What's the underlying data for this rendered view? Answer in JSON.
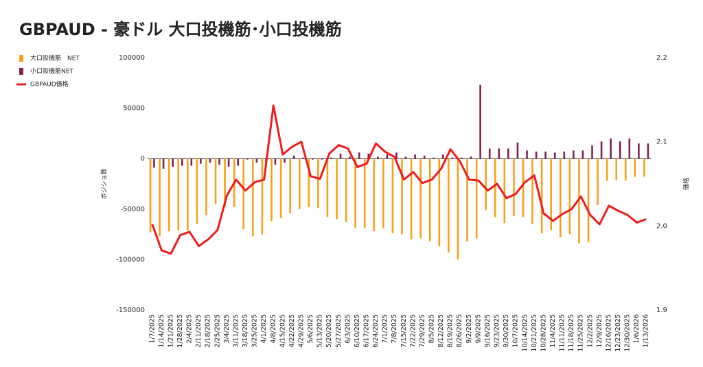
{
  "chart_data": {
    "type": "bar",
    "title": "GBPAUD - 豪ドル 大口投機筋･小口投機筋",
    "y_label": "ボジショ数",
    "y2_label": "価格",
    "categories": [
      "1/7/2025",
      "1/14/2025",
      "1/21/2025",
      "1/28/2025",
      "2/4/2025",
      "2/11/2025",
      "2/18/2025",
      "2/25/2025",
      "3/4/2025",
      "3/11/2025",
      "3/18/2025",
      "3/25/2025",
      "4/1/2025",
      "4/8/2025",
      "4/15/2025",
      "4/22/2025",
      "4/29/2025",
      "5/6/2025",
      "5/13/2025",
      "5/20/2025",
      "5/27/2025",
      "6/3/2025",
      "6/10/2025",
      "6/17/2025",
      "6/24/2025",
      "7/1/2025",
      "7/8/2025",
      "7/15/2025",
      "7/22/2025",
      "7/29/2025",
      "8/5/2025",
      "8/12/2025",
      "8/19/2025",
      "8/26/2025",
      "9/2/2025",
      "9/9/2025",
      "9/16/2025",
      "9/23/2025",
      "9/30/2025",
      "10/7/2025",
      "10/14/2025",
      "10/21/2025",
      "10/28/2025",
      "11/4/2025",
      "11/11/2025",
      "11/18/2025",
      "11/25/2025",
      "12/2/2025",
      "12/9/2025",
      "12/16/2025",
      "12/23/2025",
      "12/30/2025",
      "1/6/2026",
      "1/13/2026"
    ],
    "series": [
      {
        "name": "大口投機筋　NET",
        "color": "#f4a11c",
        "values": [
          -73000,
          -77000,
          -72000,
          -71000,
          -71000,
          -65000,
          -56000,
          -45000,
          -48000,
          -48000,
          -70000,
          -77000,
          -75000,
          -62000,
          -59000,
          -54000,
          -50000,
          -48000,
          -49000,
          -58000,
          -60000,
          -63000,
          -69000,
          -69000,
          -72000,
          -69000,
          -74000,
          -75000,
          -80000,
          -79000,
          -82000,
          -87000,
          -93000,
          -100000,
          -82000,
          -79000,
          -51000,
          -58000,
          -64000,
          -57000,
          -58000,
          -65000,
          -74000,
          -71000,
          -78000,
          -75000,
          -84000,
          -83000,
          -46000,
          -22000,
          -21000,
          -22000,
          -18000,
          -18000
        ]
      },
      {
        "name": "小口投機筋NET",
        "color": "#7b2252",
        "values": [
          -9000,
          -10000,
          -8000,
          -7000,
          -7000,
          -5000,
          -4000,
          -6000,
          -8000,
          -7000,
          -1000,
          -4000,
          -3000,
          -6000,
          -4000,
          3000,
          1000,
          -1000,
          -1000,
          1000,
          5000,
          2000,
          6000,
          5000,
          2000,
          4000,
          6000,
          2000,
          4000,
          3000,
          1000,
          4000,
          1000,
          1000,
          2000,
          73000,
          10000,
          10000,
          10000,
          16000,
          8000,
          7000,
          7000,
          6000,
          7000,
          8000,
          8000,
          13000,
          17000,
          20000,
          17000,
          20000,
          15000,
          15000
        ]
      },
      {
        "name": "GBPAUD価格",
        "color": "#ee1c1c",
        "type": "line",
        "axis": "y2",
        "values": [
          2.002,
          1.971,
          1.967,
          1.989,
          1.993,
          1.976,
          1.984,
          1.995,
          2.036,
          2.055,
          2.042,
          2.052,
          2.055,
          2.143,
          2.085,
          2.094,
          2.1,
          2.059,
          2.056,
          2.086,
          2.096,
          2.092,
          2.07,
          2.074,
          2.098,
          2.088,
          2.082,
          2.055,
          2.064,
          2.051,
          2.055,
          2.068,
          2.091,
          2.077,
          2.055,
          2.054,
          2.042,
          2.05,
          2.033,
          2.038,
          2.052,
          2.06,
          2.015,
          2.006,
          2.014,
          2.02,
          2.035,
          2.013,
          2.002,
          2.024,
          2.018,
          2.013,
          2.004,
          2.008
        ]
      }
    ],
    "ylim": [
      -150000,
      100000
    ],
    "yticks": [
      -150000,
      -100000,
      -50000,
      0,
      50000,
      100000
    ],
    "y2lim": [
      1.9,
      2.2
    ],
    "y2ticks": [
      1.9,
      {
        "value": 2,
        "label": "2.0"
      },
      2.1,
      2.2
    ],
    "legend": "left"
  }
}
